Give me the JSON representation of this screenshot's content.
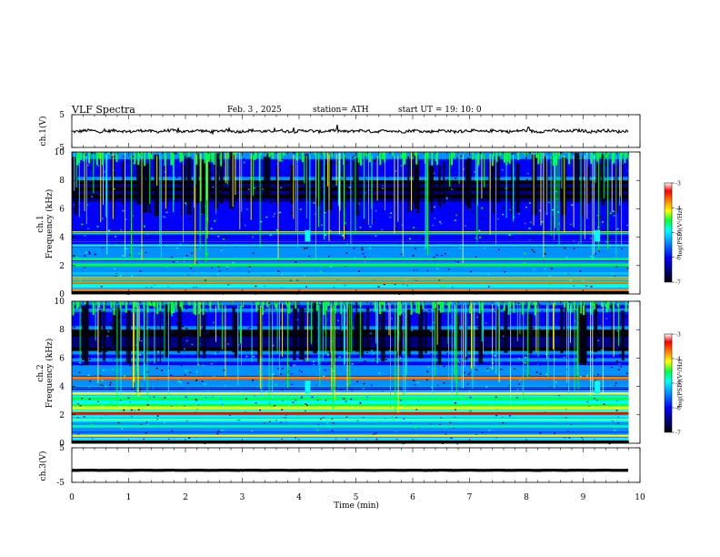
{
  "header": {
    "title": "VLF  Spectra",
    "date": "Feb. 3  , 2025",
    "station": "station= ATH",
    "start": "start  UT  =    19: 10: 0"
  },
  "colors": {
    "trace": "#000000",
    "colormap": [
      "#000000",
      "#00007a",
      "#0000ff",
      "#0090ff",
      "#00ffff",
      "#00ff40",
      "#ffff00",
      "#ff8000",
      "#ff0000",
      "#ffffff"
    ]
  },
  "chart_data": [
    {
      "type": "line",
      "panel": "ch1-waveform",
      "ylabel": "ch.1(V)",
      "ylim": [
        -5,
        5
      ],
      "yticks": [
        {
          "v": 5,
          "label": "5"
        },
        {
          "v": -5,
          "label": "-5"
        }
      ],
      "xlim": [
        0,
        10
      ],
      "level": 0,
      "amplitude": 0.35
    },
    {
      "type": "heatmap",
      "panel": "ch1-spectrogram",
      "ylabel": "Frequency  (kHz)",
      "channel_label": "ch.1",
      "ylim": [
        0,
        10
      ],
      "yticks": [
        {
          "v": 0,
          "label": "0"
        },
        {
          "v": 2,
          "label": "2"
        },
        {
          "v": 4,
          "label": "4"
        },
        {
          "v": 6,
          "label": "6"
        },
        {
          "v": 8,
          "label": "8"
        },
        {
          "v": 10,
          "label": "10"
        }
      ],
      "xlim": [
        0,
        9.8
      ],
      "colorbar": {
        "label": "log(PSD)(V²/Hz)",
        "range": [
          -7,
          -3
        ],
        "ticks": [
          {
            "v": -3,
            "label": "-3"
          },
          {
            "v": -4,
            "label": "-4"
          },
          {
            "v": -5,
            "label": "-5"
          },
          {
            "v": -6,
            "label": "-6"
          },
          {
            "v": -7,
            "label": "-7"
          }
        ]
      },
      "bands": [
        {
          "freq": 0.3,
          "level": -4.2
        },
        {
          "freq": 0.8,
          "level": -4.0
        },
        {
          "freq": 1.1,
          "level": -4.6
        },
        {
          "freq": 2.05,
          "level": -4.9
        },
        {
          "freq": 2.45,
          "level": -5.0
        },
        {
          "freq": 3.4,
          "level": -5.1
        },
        {
          "freq": 4.3,
          "level": -5.4
        }
      ],
      "bursts": [
        {
          "time": 4.15,
          "fmin": 3.7,
          "fmax": 4.5
        },
        {
          "time": 9.25,
          "fmin": 3.7,
          "fmax": 4.5
        }
      ]
    },
    {
      "type": "heatmap",
      "panel": "ch2-spectrogram",
      "ylabel": "Frequency  (kHz)",
      "channel_label": "ch.2",
      "ylim": [
        0,
        10
      ],
      "yticks": [
        {
          "v": 0,
          "label": "0"
        },
        {
          "v": 2,
          "label": "2"
        },
        {
          "v": 4,
          "label": "4"
        },
        {
          "v": 6,
          "label": "6"
        },
        {
          "v": 8,
          "label": "8"
        },
        {
          "v": 10,
          "label": "10"
        }
      ],
      "xlim": [
        0,
        9.8
      ],
      "colorbar": {
        "label": "log(PSD)(V²/Hz)",
        "range": [
          -7,
          -3
        ],
        "ticks": [
          {
            "v": -3,
            "label": "-3"
          },
          {
            "v": -4,
            "label": "-4"
          },
          {
            "v": -5,
            "label": "-5"
          },
          {
            "v": -6,
            "label": "-6"
          },
          {
            "v": -7,
            "label": "-7"
          }
        ]
      },
      "bands": [
        {
          "freq": 0.5,
          "level": -4.5
        },
        {
          "freq": 1.2,
          "level": -4.9
        },
        {
          "freq": 2.1,
          "level": -3.6
        },
        {
          "freq": 2.5,
          "level": -4.5
        },
        {
          "freq": 3.5,
          "level": -4.3
        },
        {
          "freq": 4.6,
          "level": -3.9
        }
      ],
      "bursts": [
        {
          "time": 4.15,
          "fmin": 3.5,
          "fmax": 4.4
        },
        {
          "time": 9.25,
          "fmin": 3.5,
          "fmax": 4.4
        }
      ]
    },
    {
      "type": "line",
      "panel": "ch3-waveform",
      "ylabel": "ch.3(V)",
      "ylim": [
        -5,
        5
      ],
      "yticks": [
        {
          "v": 5,
          "label": "5"
        },
        {
          "v": -5,
          "label": "-5"
        }
      ],
      "xlim": [
        0,
        10
      ],
      "level": -1.5,
      "amplitude": 0.05
    }
  ],
  "time_axis": {
    "xlabel": "Time  (min)",
    "xlim": [
      0,
      10
    ],
    "ticks": [
      {
        "v": 0,
        "label": "0"
      },
      {
        "v": 1,
        "label": "1"
      },
      {
        "v": 2,
        "label": "2"
      },
      {
        "v": 3,
        "label": "3"
      },
      {
        "v": 4,
        "label": "4"
      },
      {
        "v": 5,
        "label": "5"
      },
      {
        "v": 6,
        "label": "6"
      },
      {
        "v": 7,
        "label": "7"
      },
      {
        "v": 8,
        "label": "8"
      },
      {
        "v": 9,
        "label": "9"
      },
      {
        "v": 10,
        "label": "10"
      }
    ]
  }
}
